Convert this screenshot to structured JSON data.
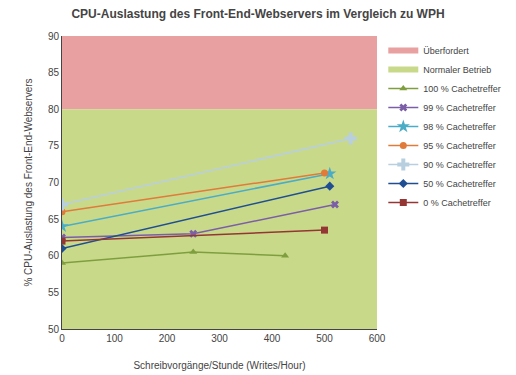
{
  "chart_data": {
    "type": "line",
    "title": "CPU-Auslastung des Front-End-Webservers im Vergleich zu WPH",
    "x_label": "Schreibvorgänge/Stunde (Writes/Hour)",
    "y_label": "% CPU-Auslastung des Front-End-Webservers",
    "xlim": [
      0,
      600
    ],
    "ylim": [
      50,
      90
    ],
    "xticks": [
      0,
      100,
      200,
      300,
      400,
      500,
      600
    ],
    "yticks": [
      50,
      55,
      60,
      65,
      70,
      75,
      80,
      85,
      90
    ],
    "grid": false,
    "legend": "right",
    "regions": [
      {
        "name": "Überfordert",
        "from": 80,
        "to": 90,
        "color": "#e8a0a0"
      },
      {
        "name": "Normaler Betrieb",
        "from": 50,
        "to": 80,
        "color": "#c8d98a"
      }
    ],
    "series": [
      {
        "name": "100 % Cachetreffer",
        "color": "#7f9f3f",
        "marker": "triangle",
        "line_style": "solid",
        "x": [
          0,
          250,
          425
        ],
        "values": [
          59.0,
          60.5,
          60.0
        ]
      },
      {
        "name": "99 % Cachetreffer",
        "color": "#7b5ea7",
        "marker": "x",
        "line_style": "solid",
        "x": [
          0,
          250,
          520
        ],
        "values": [
          62.5,
          63.0,
          67.0
        ]
      },
      {
        "name": "98 % Cachetreffer",
        "color": "#4bacc6",
        "marker": "star",
        "line_style": "solid",
        "x": [
          0,
          510
        ],
        "values": [
          64.0,
          71.2
        ]
      },
      {
        "name": "95 % Cachetreffer",
        "color": "#e07b39",
        "marker": "circle",
        "line_style": "solid",
        "x": [
          0,
          500
        ],
        "values": [
          66.0,
          71.3
        ]
      },
      {
        "name": "90 % Cachetreffer",
        "color": "#b8cfe0",
        "marker": "plus",
        "line_style": "solid",
        "x": [
          0,
          550
        ],
        "values": [
          67.0,
          76.0
        ]
      },
      {
        "name": "50 % Cachetreffer",
        "color": "#1f4e92",
        "marker": "diamond",
        "line_style": "solid",
        "x": [
          0,
          510
        ],
        "values": [
          61.0,
          69.5
        ]
      },
      {
        "name": "0 % Cachetreffer",
        "color": "#943634",
        "marker": "square",
        "line_style": "solid",
        "x": [
          0,
          500
        ],
        "values": [
          62.0,
          63.5
        ]
      }
    ]
  }
}
